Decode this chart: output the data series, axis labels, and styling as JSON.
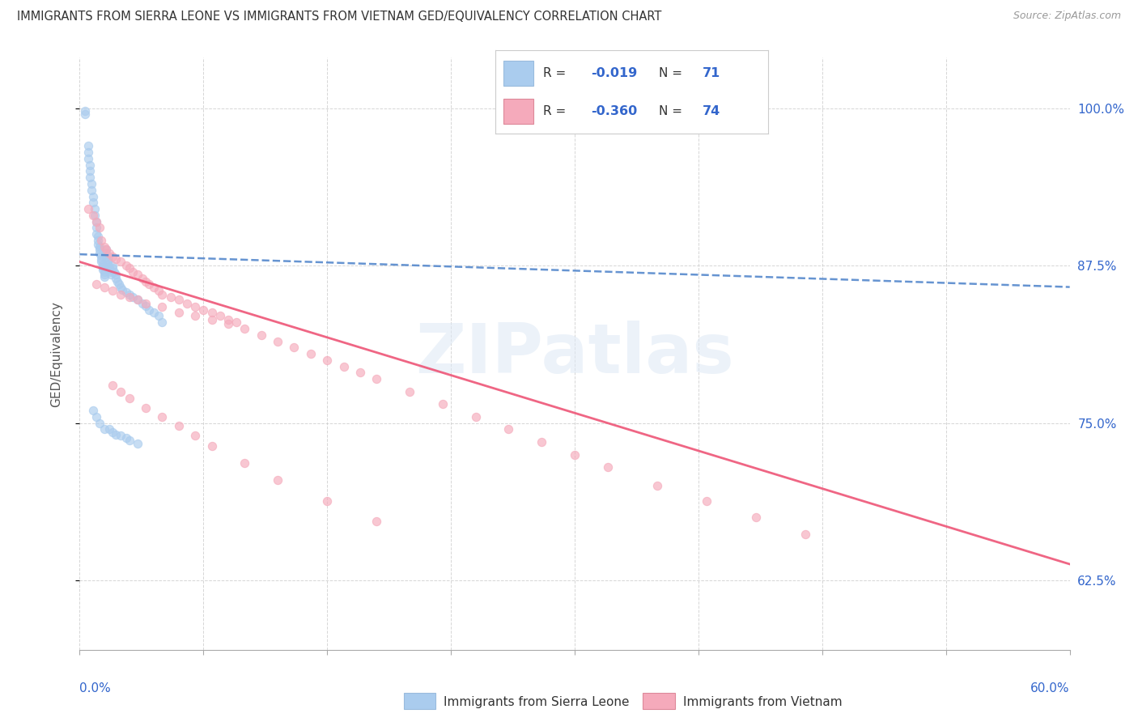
{
  "title": "IMMIGRANTS FROM SIERRA LEONE VS IMMIGRANTS FROM VIETNAM GED/EQUIVALENCY CORRELATION CHART",
  "source": "Source: ZipAtlas.com",
  "ylabel": "GED/Equivalency",
  "ytick_labels": [
    "100.0%",
    "87.5%",
    "75.0%",
    "62.5%"
  ],
  "ytick_values": [
    1.0,
    0.875,
    0.75,
    0.625
  ],
  "xlim": [
    0.0,
    0.6
  ],
  "ylim": [
    0.57,
    1.04
  ],
  "color_sierra": "#aaccee",
  "color_vietnam": "#f5aabb",
  "color_line_sierra": "#5588cc",
  "color_line_vietnam": "#ee5577",
  "color_text_blue": "#3366cc",
  "color_title": "#333333",
  "color_source": "#999999",
  "color_grid": "#cccccc",
  "scatter_size": 55,
  "scatter_alpha": 0.65,
  "scatter_lw": 0.8,
  "sierra_trendline_x": [
    0.0,
    0.6
  ],
  "sierra_trendline_y": [
    0.884,
    0.858
  ],
  "vietnam_trendline_x": [
    0.0,
    0.6
  ],
  "vietnam_trendline_y": [
    0.878,
    0.638
  ],
  "sierra_leone_x": [
    0.003,
    0.003,
    0.005,
    0.005,
    0.005,
    0.006,
    0.006,
    0.006,
    0.007,
    0.007,
    0.008,
    0.008,
    0.009,
    0.009,
    0.01,
    0.01,
    0.01,
    0.011,
    0.011,
    0.011,
    0.012,
    0.012,
    0.012,
    0.013,
    0.013,
    0.013,
    0.014,
    0.014,
    0.014,
    0.015,
    0.015,
    0.015,
    0.016,
    0.016,
    0.016,
    0.017,
    0.017,
    0.017,
    0.018,
    0.018,
    0.019,
    0.019,
    0.02,
    0.02,
    0.021,
    0.022,
    0.022,
    0.023,
    0.024,
    0.025,
    0.026,
    0.028,
    0.03,
    0.032,
    0.035,
    0.038,
    0.04,
    0.042,
    0.045,
    0.048,
    0.05,
    0.008,
    0.01,
    0.012,
    0.015,
    0.018,
    0.02,
    0.022,
    0.025,
    0.028,
    0.03,
    0.035
  ],
  "sierra_leone_y": [
    0.998,
    0.995,
    0.97,
    0.965,
    0.96,
    0.955,
    0.95,
    0.945,
    0.94,
    0.935,
    0.93,
    0.925,
    0.92,
    0.915,
    0.91,
    0.905,
    0.9,
    0.898,
    0.895,
    0.892,
    0.89,
    0.888,
    0.885,
    0.883,
    0.88,
    0.878,
    0.876,
    0.874,
    0.872,
    0.87,
    0.868,
    0.866,
    0.888,
    0.885,
    0.882,
    0.88,
    0.878,
    0.876,
    0.874,
    0.872,
    0.87,
    0.868,
    0.875,
    0.873,
    0.87,
    0.868,
    0.865,
    0.862,
    0.86,
    0.858,
    0.856,
    0.854,
    0.852,
    0.85,
    0.848,
    0.845,
    0.843,
    0.84,
    0.838,
    0.835,
    0.83,
    0.76,
    0.755,
    0.75,
    0.745,
    0.745,
    0.743,
    0.741,
    0.74,
    0.738,
    0.736,
    0.734
  ],
  "vietnam_x": [
    0.005,
    0.008,
    0.01,
    0.012,
    0.013,
    0.015,
    0.016,
    0.018,
    0.02,
    0.022,
    0.025,
    0.028,
    0.03,
    0.032,
    0.035,
    0.038,
    0.04,
    0.042,
    0.045,
    0.048,
    0.05,
    0.055,
    0.06,
    0.065,
    0.07,
    0.075,
    0.08,
    0.085,
    0.09,
    0.095,
    0.01,
    0.015,
    0.02,
    0.025,
    0.03,
    0.035,
    0.04,
    0.05,
    0.06,
    0.07,
    0.08,
    0.09,
    0.1,
    0.11,
    0.12,
    0.13,
    0.14,
    0.15,
    0.16,
    0.17,
    0.18,
    0.2,
    0.22,
    0.24,
    0.26,
    0.28,
    0.3,
    0.32,
    0.35,
    0.38,
    0.41,
    0.44,
    0.02,
    0.025,
    0.03,
    0.04,
    0.05,
    0.06,
    0.07,
    0.08,
    0.1,
    0.12,
    0.15,
    0.18
  ],
  "vietnam_y": [
    0.92,
    0.915,
    0.91,
    0.905,
    0.895,
    0.89,
    0.888,
    0.885,
    0.882,
    0.88,
    0.878,
    0.875,
    0.873,
    0.87,
    0.868,
    0.865,
    0.862,
    0.86,
    0.858,
    0.855,
    0.852,
    0.85,
    0.848,
    0.845,
    0.842,
    0.84,
    0.838,
    0.835,
    0.832,
    0.83,
    0.86,
    0.858,
    0.855,
    0.852,
    0.85,
    0.848,
    0.845,
    0.842,
    0.838,
    0.835,
    0.832,
    0.829,
    0.825,
    0.82,
    0.815,
    0.81,
    0.805,
    0.8,
    0.795,
    0.79,
    0.785,
    0.775,
    0.765,
    0.755,
    0.745,
    0.735,
    0.725,
    0.715,
    0.7,
    0.688,
    0.675,
    0.662,
    0.78,
    0.775,
    0.77,
    0.762,
    0.755,
    0.748,
    0.74,
    0.732,
    0.718,
    0.705,
    0.688,
    0.672
  ]
}
